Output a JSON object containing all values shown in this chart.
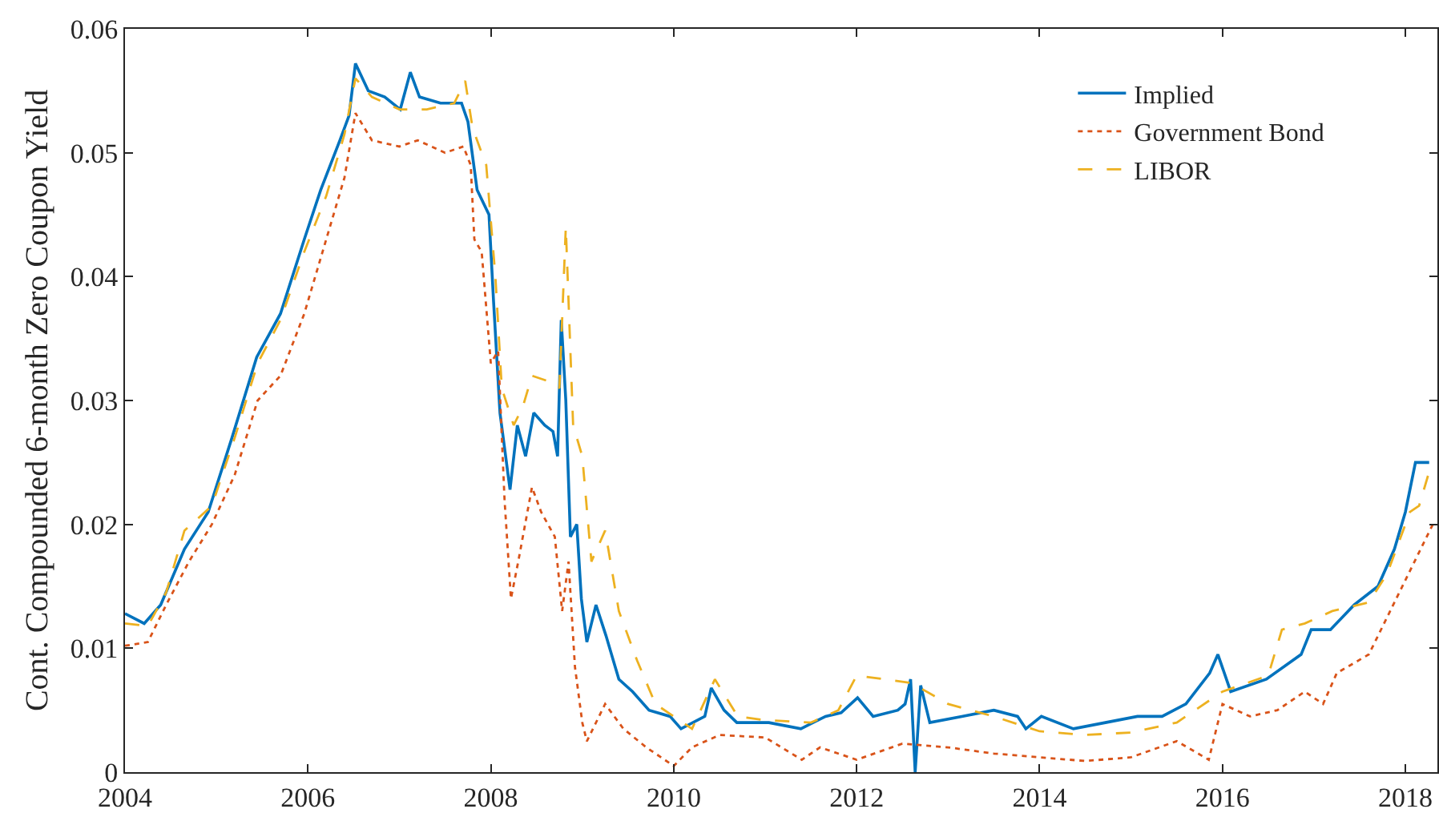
{
  "chart_data": {
    "type": "line",
    "ylabel": "Cont. Compounded 6-month Zero Coupon Yield",
    "xlim": [
      2004,
      2018.35
    ],
    "xticks": [
      2004,
      2006,
      2008,
      2010,
      2012,
      2014,
      2016,
      2018
    ],
    "ylim": [
      0,
      0.06
    ],
    "yticks": [
      0,
      0.01,
      0.02,
      0.03,
      0.04,
      0.05,
      0.06
    ],
    "grid": false,
    "legend": "top right",
    "marker": "none",
    "series": [
      {
        "name": "Implied",
        "color": "#0072bd",
        "line_style": "solid",
        "x": [
          2004,
          2004.21,
          2004.39,
          2004.65,
          2004.91,
          2005.17,
          2005.44,
          2005.7,
          2005.96,
          2006.14,
          2006.35,
          2006.45,
          2006.52,
          2006.66,
          2006.84,
          2007.01,
          2007.12,
          2007.22,
          2007.45,
          2007.68,
          2007.75,
          2007.85,
          2007.98,
          2008.03,
          2008.1,
          2008.21,
          2008.29,
          2008.38,
          2008.47,
          2008.59,
          2008.68,
          2008.73,
          2008.77,
          2008.82,
          2008.87,
          2008.94,
          2008.99,
          2009.05,
          2009.15,
          2009.26,
          2009.4,
          2009.55,
          2009.73,
          2009.96,
          2010.08,
          2010.34,
          2010.41,
          2010.55,
          2010.69,
          2011.04,
          2011.39,
          2011.66,
          2011.83,
          2012.01,
          2012.18,
          2012.45,
          2012.53,
          2012.59,
          2012.64,
          2012.7,
          2012.8,
          2013.15,
          2013.5,
          2013.76,
          2013.85,
          2014.02,
          2014.37,
          2014.72,
          2015.07,
          2015.34,
          2015.6,
          2015.86,
          2015.95,
          2016.09,
          2016.48,
          2016.86,
          2016.97,
          2017.18,
          2017.44,
          2017.7,
          2017.88,
          2018,
          2018.11,
          2018.26
        ],
        "values": [
          0.0128,
          0.012,
          0.0135,
          0.018,
          0.021,
          0.027,
          0.0335,
          0.037,
          0.043,
          0.047,
          0.051,
          0.053,
          0.0572,
          0.055,
          0.0545,
          0.0535,
          0.0565,
          0.0545,
          0.054,
          0.054,
          0.0525,
          0.047,
          0.045,
          0.038,
          0.029,
          0.0228,
          0.028,
          0.0255,
          0.029,
          0.028,
          0.0275,
          0.0255,
          0.0365,
          0.03,
          0.019,
          0.02,
          0.014,
          0.0105,
          0.0135,
          0.011,
          0.0075,
          0.0065,
          0.005,
          0.0045,
          0.0035,
          0.0045,
          0.0068,
          0.005,
          0.004,
          0.004,
          0.0035,
          0.0045,
          0.0048,
          0.006,
          0.0045,
          0.005,
          0.0055,
          0.0075,
          0,
          0.007,
          0.004,
          0.0045,
          0.005,
          0.0045,
          0.0035,
          0.0045,
          0.0035,
          0.004,
          0.0045,
          0.0045,
          0.0055,
          0.008,
          0.0095,
          0.0065,
          0.0075,
          0.0095,
          0.0115,
          0.0115,
          0.0135,
          0.015,
          0.018,
          0.021,
          0.025,
          0.025
        ]
      },
      {
        "name": "Government Bond",
        "color": "#d95319",
        "line_style": "dotted",
        "x": [
          2004,
          2004.25,
          2004.45,
          2004.7,
          2004.95,
          2005.2,
          2005.45,
          2005.7,
          2005.96,
          2006.2,
          2006.4,
          2006.52,
          2006.7,
          2007,
          2007.2,
          2007.5,
          2007.7,
          2007.78,
          2007.82,
          2007.9,
          2008,
          2008.08,
          2008.15,
          2008.22,
          2008.3,
          2008.45,
          2008.55,
          2008.7,
          2008.78,
          2008.85,
          2008.92,
          2009,
          2009.05,
          2009.25,
          2009.45,
          2009.7,
          2010,
          2010.2,
          2010.5,
          2011,
          2011.4,
          2011.6,
          2012,
          2012.5,
          2013,
          2013.5,
          2014,
          2014.5,
          2015,
          2015.5,
          2015.85,
          2016,
          2016.3,
          2016.6,
          2016.9,
          2017.1,
          2017.25,
          2017.6,
          2017.9,
          2018.1,
          2018.3
        ],
        "values": [
          0.0102,
          0.0105,
          0.0135,
          0.017,
          0.02,
          0.024,
          0.03,
          0.032,
          0.037,
          0.043,
          0.048,
          0.0532,
          0.051,
          0.0505,
          0.051,
          0.05,
          0.0505,
          0.049,
          0.043,
          0.042,
          0.033,
          0.034,
          0.022,
          0.014,
          0.017,
          0.023,
          0.021,
          0.019,
          0.013,
          0.017,
          0.0085,
          0.004,
          0.0025,
          0.0055,
          0.0035,
          0.002,
          0.0005,
          0.002,
          0.003,
          0.0028,
          0.001,
          0.002,
          0.001,
          0.0023,
          0.002,
          0.0015,
          0.0012,
          0.0009,
          0.0012,
          0.0025,
          0.001,
          0.0055,
          0.0045,
          0.005,
          0.0065,
          0.0055,
          0.008,
          0.0095,
          0.014,
          0.017,
          0.02
        ]
      },
      {
        "name": "LIBOR",
        "color": "#edb120",
        "line_style": "dashed",
        "x": [
          2004,
          2004.25,
          2004.45,
          2004.65,
          2004.95,
          2005.2,
          2005.45,
          2005.7,
          2005.96,
          2006.2,
          2006.4,
          2006.52,
          2006.7,
          2007,
          2007.3,
          2007.6,
          2007.72,
          2007.8,
          2007.95,
          2008.05,
          2008.12,
          2008.25,
          2008.35,
          2008.45,
          2008.65,
          2008.75,
          2008.82,
          2008.9,
          2009,
          2009.1,
          2009.25,
          2009.4,
          2009.6,
          2009.8,
          2010,
          2010.2,
          2010.45,
          2010.7,
          2011,
          2011.5,
          2011.8,
          2012,
          2012.3,
          2012.6,
          2013,
          2013.5,
          2014,
          2014.5,
          2015,
          2015.5,
          2015.9,
          2016,
          2016.5,
          2016.65,
          2016.9,
          2017.2,
          2017.6,
          2017.8,
          2018.05,
          2018.15,
          2018.25
        ],
        "values": [
          0.012,
          0.0118,
          0.0145,
          0.0195,
          0.0215,
          0.027,
          0.033,
          0.0365,
          0.042,
          0.0465,
          0.0515,
          0.056,
          0.0545,
          0.0535,
          0.0535,
          0.054,
          0.0558,
          0.052,
          0.049,
          0.04,
          0.031,
          0.028,
          0.0295,
          0.032,
          0.0315,
          0.031,
          0.044,
          0.028,
          0.0255,
          0.017,
          0.0195,
          0.013,
          0.009,
          0.0055,
          0.0045,
          0.0035,
          0.0075,
          0.0045,
          0.0042,
          0.004,
          0.005,
          0.0078,
          0.0075,
          0.0072,
          0.0055,
          0.0045,
          0.0033,
          0.003,
          0.0032,
          0.004,
          0.006,
          0.0065,
          0.0078,
          0.0115,
          0.012,
          0.013,
          0.0137,
          0.016,
          0.021,
          0.0215,
          0.024
        ]
      }
    ]
  }
}
